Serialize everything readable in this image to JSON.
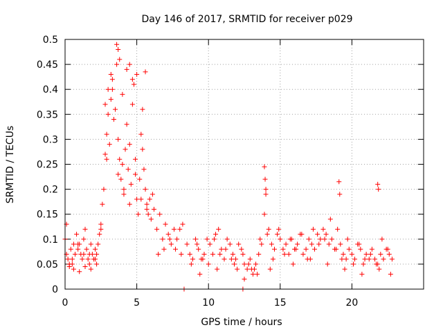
{
  "chart_data": {
    "type": "scatter",
    "title": "Day 146 of 2017, SRMTID for receiver p029",
    "xlabel": "GPS time / hours",
    "ylabel": "SRMTID / TECUs",
    "xlim": [
      0,
      25
    ],
    "ylim": [
      0,
      0.5
    ],
    "xticks": [
      0,
      5,
      10,
      15,
      20
    ],
    "yticks": [
      0,
      0.05,
      0.1,
      0.15,
      0.2,
      0.25,
      0.3,
      0.35,
      0.4,
      0.45,
      0.5
    ],
    "xtick_labels": [
      "0",
      "5",
      "10",
      "15",
      "20"
    ],
    "ytick_labels": [
      "0",
      "0.05",
      "0.1",
      "0.15",
      "0.2",
      "0.25",
      "0.3",
      "0.35",
      "0.4",
      "0.45",
      "0.5"
    ],
    "grid": true,
    "marker": "+",
    "color": "#ff0000",
    "series": [
      {
        "name": "SRMTID",
        "x": [
          0.0,
          0.1,
          0.2,
          0.3,
          0.4,
          0.5,
          0.6,
          0.7,
          0.8,
          0.9,
          1.0,
          1.1,
          1.2,
          1.3,
          1.4,
          1.5,
          1.6,
          1.7,
          1.8,
          1.9,
          2.0,
          2.1,
          2.2,
          2.3,
          2.4,
          2.5,
          2.6,
          2.7,
          2.8,
          2.9,
          3.0,
          3.1,
          3.2,
          3.3,
          3.4,
          3.5,
          3.6,
          3.7,
          3.8,
          3.9,
          4.0,
          4.1,
          4.2,
          4.3,
          4.4,
          4.5,
          4.6,
          4.7,
          4.8,
          4.9,
          5.0,
          5.1,
          5.2,
          5.3,
          5.4,
          5.5,
          5.6,
          5.7,
          5.8,
          5.9,
          6.0,
          6.2,
          6.4,
          6.6,
          6.8,
          7.0,
          7.2,
          7.4,
          7.6,
          7.8,
          8.0,
          8.2,
          8.5,
          8.7,
          8.9,
          9.1,
          9.3,
          9.5,
          9.7,
          9.9,
          10.1,
          10.3,
          10.5,
          10.7,
          10.9,
          11.1,
          11.3,
          11.5,
          11.7,
          11.9,
          12.1,
          12.3,
          12.5,
          12.7,
          12.9,
          13.1,
          13.3,
          13.5,
          13.7,
          13.9,
          14.0,
          14.2,
          14.4,
          14.6,
          14.8,
          15.0,
          15.2,
          15.4,
          15.6,
          15.8,
          16.0,
          16.2,
          16.4,
          16.6,
          16.8,
          17.0,
          17.2,
          17.4,
          17.6,
          17.8,
          18.0,
          18.2,
          18.4,
          18.6,
          18.8,
          19.0,
          19.2,
          19.4,
          19.6,
          19.8,
          20.0,
          20.2,
          20.4,
          20.6,
          20.8,
          21.0,
          21.2,
          21.4,
          21.6,
          21.8,
          22.0,
          22.2,
          22.4,
          22.6,
          22.8,
          0.1,
          0.5,
          0.9,
          1.3,
          1.7,
          2.1,
          2.5,
          2.9,
          3.3,
          3.7,
          4.1,
          4.5,
          4.9,
          5.3,
          5.7,
          6.1,
          6.5,
          6.9,
          7.3,
          7.7,
          8.1,
          8.8,
          9.2,
          9.6,
          10.0,
          10.4,
          10.8,
          11.2,
          11.6,
          12.0,
          12.4,
          12.8,
          13.2,
          13.6,
          14.1,
          14.5,
          14.9,
          15.3,
          15.7,
          16.1,
          16.5,
          16.9,
          17.3,
          17.7,
          18.1,
          18.5,
          18.9,
          19.3,
          19.7,
          20.1,
          20.5,
          20.9,
          21.3,
          21.7,
          22.1,
          22.5,
          3.6,
          3.7,
          3.8,
          4.3,
          4.5,
          4.7,
          5.0,
          5.6,
          2.8,
          3.0,
          3.2,
          4.0,
          5.4,
          13.9,
          13.95,
          14.0,
          19.1,
          19.15,
          21.8,
          21.85,
          0.3,
          0.6,
          1.0,
          1.4,
          1.8,
          2.2,
          8.3,
          12.4,
          12.5,
          9.4,
          10.6,
          11.8,
          13.0,
          13.4,
          14.3,
          15.9,
          17.1,
          18.3,
          19.5,
          20.7,
          21.9,
          22.7
        ],
        "y": [
          0.1,
          0.07,
          0.06,
          0.05,
          0.08,
          0.06,
          0.09,
          0.07,
          0.11,
          0.08,
          0.09,
          0.07,
          0.06,
          0.1,
          0.12,
          0.08,
          0.06,
          0.07,
          0.09,
          0.07,
          0.06,
          0.08,
          0.07,
          0.09,
          0.11,
          0.13,
          0.17,
          0.2,
          0.27,
          0.31,
          0.35,
          0.29,
          0.38,
          0.42,
          0.34,
          0.36,
          0.45,
          0.3,
          0.26,
          0.22,
          0.25,
          0.19,
          0.28,
          0.33,
          0.24,
          0.29,
          0.21,
          0.37,
          0.41,
          0.26,
          0.18,
          0.15,
          0.22,
          0.31,
          0.28,
          0.24,
          0.2,
          0.17,
          0.15,
          0.18,
          0.14,
          0.16,
          0.12,
          0.15,
          0.1,
          0.13,
          0.11,
          0.09,
          0.12,
          0.1,
          0.12,
          0.13,
          0.09,
          0.07,
          0.06,
          0.1,
          0.08,
          0.06,
          0.07,
          0.1,
          0.09,
          0.07,
          0.11,
          0.12,
          0.08,
          0.06,
          0.1,
          0.09,
          0.07,
          0.06,
          0.09,
          0.08,
          0.05,
          0.04,
          0.06,
          0.03,
          0.05,
          0.07,
          0.09,
          0.15,
          0.19,
          0.12,
          0.09,
          0.08,
          0.11,
          0.1,
          0.08,
          0.09,
          0.07,
          0.1,
          0.08,
          0.09,
          0.11,
          0.07,
          0.08,
          0.1,
          0.09,
          0.08,
          0.11,
          0.1,
          0.12,
          0.11,
          0.09,
          0.1,
          0.08,
          0.12,
          0.09,
          0.07,
          0.06,
          0.08,
          0.07,
          0.06,
          0.09,
          0.08,
          0.05,
          0.07,
          0.06,
          0.08,
          0.06,
          0.05,
          0.07,
          0.06,
          0.08,
          0.07,
          0.06,
          0.13,
          0.05,
          0.09,
          0.07,
          0.05,
          0.06,
          0.12,
          0.26,
          0.4,
          0.23,
          0.2,
          0.17,
          0.23,
          0.18,
          0.16,
          0.19,
          0.07,
          0.08,
          0.1,
          0.08,
          0.07,
          0.05,
          0.09,
          0.06,
          0.05,
          0.1,
          0.07,
          0.08,
          0.06,
          0.04,
          0.07,
          0.05,
          0.04,
          0.1,
          0.11,
          0.06,
          0.12,
          0.07,
          0.1,
          0.08,
          0.11,
          0.06,
          0.12,
          0.09,
          0.1,
          0.14,
          0.08,
          0.06,
          0.1,
          0.05,
          0.09,
          0.06,
          0.07,
          0.05,
          0.1,
          0.08,
          0.49,
          0.48,
          0.46,
          0.44,
          0.45,
          0.42,
          0.43,
          0.435,
          0.37,
          0.4,
          0.43,
          0.39,
          0.36,
          0.245,
          0.22,
          0.2,
          0.215,
          0.19,
          0.21,
          0.2,
          0.045,
          0.04,
          0.035,
          0.045,
          0.04,
          0.05,
          0.0,
          0.0,
          0.02,
          0.03,
          0.04,
          0.05,
          0.04,
          0.03,
          0.04,
          0.05,
          0.06,
          0.05,
          0.04,
          0.03,
          0.04,
          0.03
        ]
      }
    ]
  }
}
